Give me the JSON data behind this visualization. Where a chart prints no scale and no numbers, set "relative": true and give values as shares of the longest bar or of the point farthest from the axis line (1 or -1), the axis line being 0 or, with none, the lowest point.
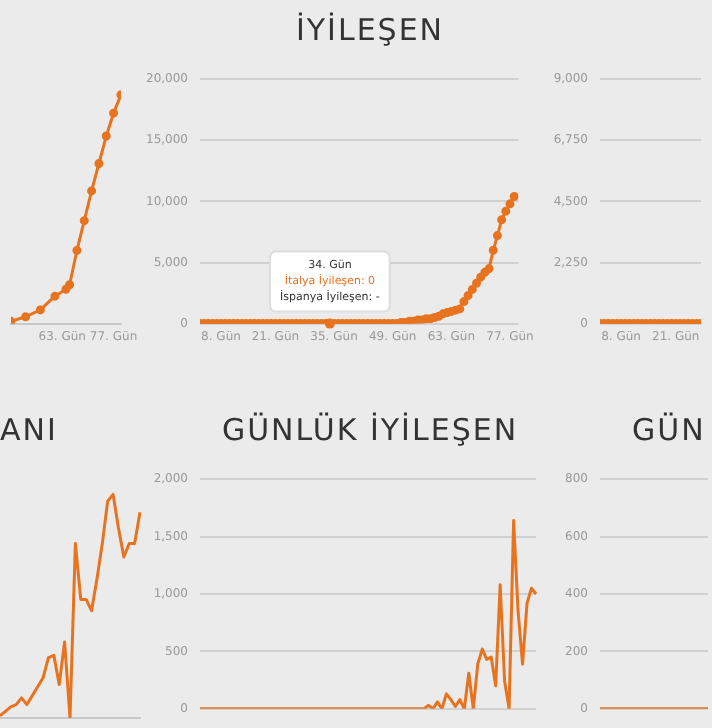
{
  "chart_data": [
    {
      "type": "line",
      "relative": true,
      "x": [
        49,
        53,
        57,
        61,
        64,
        65,
        67,
        69,
        71,
        73,
        75,
        77,
        79
      ],
      "xlim": [
        49,
        79
      ],
      "xticks": [
        {
          "value": 63,
          "label": "63. Gün"
        },
        {
          "value": 77,
          "label": "77. Gün"
        }
      ],
      "tick_labels": "x",
      "marker": "circle",
      "line_style": "solid",
      "series": [
        {
          "color": "#e8731f",
          "values": [
            0.01,
            0.03,
            0.06,
            0.12,
            0.15,
            0.17,
            0.32,
            0.45,
            0.58,
            0.7,
            0.82,
            0.92,
            1
          ]
        }
      ]
    },
    {
      "type": "line",
      "title": "İYİLEŞEN",
      "x": [
        3,
        4,
        5,
        6,
        7,
        8,
        9,
        10,
        11,
        12,
        13,
        14,
        15,
        16,
        17,
        18,
        19,
        20,
        21,
        22,
        23,
        24,
        25,
        26,
        27,
        28,
        29,
        30,
        31,
        32,
        33,
        34,
        35,
        36,
        37,
        38,
        39,
        40,
        41,
        42,
        43,
        44,
        45,
        46,
        47,
        48,
        49,
        50,
        51,
        52,
        53,
        54,
        55,
        56,
        57,
        58,
        59,
        60,
        61,
        62,
        63,
        64,
        65,
        66,
        67,
        68,
        69,
        70,
        71,
        72,
        73,
        74,
        75,
        76,
        77,
        78
      ],
      "xlim": [
        3,
        79
      ],
      "xticks": [
        {
          "value": 8,
          "label": "8. Gün"
        },
        {
          "value": 21,
          "label": "21. Gün"
        },
        {
          "value": 35,
          "label": "35. Gün"
        },
        {
          "value": 49,
          "label": "49. Gün"
        },
        {
          "value": 63,
          "label": "63. Gün"
        },
        {
          "value": 77,
          "label": "77. Gün"
        }
      ],
      "ylim": [
        0,
        20000
      ],
      "yticks": [
        0,
        {
          "value": 5000,
          "label": "5,000"
        },
        {
          "value": 10000,
          "label": "10,000"
        },
        {
          "value": 15000,
          "label": "15,000"
        },
        {
          "value": 20000,
          "label": "20,000"
        }
      ],
      "grid": "y",
      "marker": "circle",
      "line_style": "solid",
      "annotations": [
        {
          "text": "34. Gün\nİtalya İyileşen: 0\nİspanya İyileşen: -",
          "x": 34,
          "y": 0
        }
      ],
      "series": [
        {
          "color": "#e8731f",
          "values": [
            0,
            0,
            0,
            0,
            0,
            0,
            0,
            0,
            0,
            0,
            0,
            0,
            0,
            0,
            0,
            0,
            0,
            0,
            0,
            0,
            0,
            0,
            0,
            0,
            0,
            0,
            0,
            0,
            0,
            0,
            0,
            0,
            0,
            0,
            0,
            0,
            0,
            0,
            0,
            0,
            0,
            0,
            0,
            0,
            0,
            0,
            0,
            0,
            100,
            100,
            200,
            200,
            300,
            300,
            400,
            400,
            500,
            600,
            800,
            900,
            1000,
            1100,
            1200,
            1800,
            2300,
            2800,
            3300,
            3800,
            4200,
            4500,
            6000,
            7200,
            8500,
            9200,
            9800,
            10400
          ]
        }
      ]
    },
    {
      "type": "line",
      "x": [
        3,
        4,
        5,
        6,
        7,
        8,
        9,
        10,
        11,
        12,
        13,
        14,
        15,
        16,
        17,
        18,
        19,
        20,
        21,
        22,
        23,
        24,
        25,
        26,
        27
      ],
      "xlim": [
        3,
        27
      ],
      "xticks": [
        {
          "value": 8,
          "label": "8. Gün"
        },
        {
          "value": 21,
          "label": "21. Gün"
        }
      ],
      "ylim": [
        0,
        9000
      ],
      "yticks": [
        0,
        {
          "value": 2250,
          "label": "2,250"
        },
        {
          "value": 4500,
          "label": "4,500"
        },
        {
          "value": 6750,
          "label": "6,750"
        },
        {
          "value": 9000,
          "label": "9,000"
        }
      ],
      "grid": "y",
      "marker": "circle",
      "line_style": "solid",
      "series": [
        {
          "color": "#e8731f",
          "values": [
            0,
            0,
            0,
            0,
            0,
            0,
            0,
            0,
            0,
            0,
            0,
            0,
            0,
            0,
            0,
            0,
            0,
            0,
            0,
            0,
            0,
            0,
            0,
            0,
            0
          ]
        }
      ]
    },
    {
      "type": "line",
      "title": "ANI",
      "relative": true,
      "categories": [
        null,
        null,
        null,
        null,
        null,
        null,
        null,
        null,
        null,
        null,
        null,
        null,
        null,
        null,
        null,
        null,
        null,
        null,
        null,
        null,
        null,
        null,
        null,
        null,
        null,
        null,
        null
      ],
      "tick_labels": false,
      "line_style": "solid",
      "series": [
        {
          "color": "#e8731f",
          "values": [
            0.01,
            0.03,
            0.05,
            0.06,
            0.09,
            0.06,
            0.1,
            0.14,
            0.18,
            0.27,
            0.28,
            0.15,
            0.34,
            0,
            0.78,
            0.53,
            0.53,
            0.48,
            0.62,
            0.78,
            0.97,
            1,
            0.85,
            0.72,
            0.78,
            0.78,
            0.92
          ]
        }
      ]
    },
    {
      "type": "line",
      "title": "GÜNLÜK İYİLEŞEN",
      "categories": [
        null,
        null,
        null,
        null,
        null,
        null,
        null,
        null,
        null,
        null,
        null,
        null,
        null,
        null,
        null,
        null,
        null,
        null,
        null,
        null,
        null,
        null,
        null,
        null,
        null,
        null,
        null,
        null,
        null,
        null,
        null,
        null,
        null,
        null,
        null,
        null,
        null,
        null,
        null,
        null,
        null,
        null,
        null,
        null,
        null,
        null,
        null,
        null,
        null,
        null,
        null,
        null,
        null,
        null,
        null,
        null,
        null,
        null,
        null,
        null,
        null,
        null,
        null,
        null,
        null,
        null,
        null,
        null,
        null,
        null,
        null,
        null,
        null,
        null,
        null,
        null
      ],
      "ylim": [
        0,
        2000
      ],
      "yticks": [
        0,
        500,
        {
          "value": 1000,
          "label": "1,000"
        },
        {
          "value": 1500,
          "label": "1,500"
        },
        {
          "value": 2000,
          "label": "2,000"
        }
      ],
      "tick_labels": "y",
      "grid": "y",
      "line_style": "solid",
      "series": [
        {
          "color": "#e8731f",
          "values": [
            0,
            0,
            0,
            0,
            0,
            0,
            0,
            0,
            0,
            0,
            0,
            0,
            0,
            0,
            0,
            0,
            0,
            0,
            0,
            0,
            0,
            0,
            0,
            0,
            0,
            0,
            0,
            0,
            0,
            0,
            0,
            0,
            0,
            0,
            0,
            0,
            0,
            0,
            0,
            0,
            0,
            0,
            0,
            0,
            0,
            0,
            0,
            0,
            0,
            0,
            0,
            30,
            0,
            60,
            0,
            130,
            80,
            20,
            80,
            0,
            310,
            0,
            390,
            520,
            430,
            450,
            200,
            1080,
            240,
            0,
            1640,
            850,
            390,
            920,
            1050,
            1000
          ]
        }
      ]
    },
    {
      "type": "line",
      "title": "GÜN",
      "categories": [
        null,
        null,
        null,
        null,
        null,
        null,
        null,
        null,
        null,
        null,
        null,
        null
      ],
      "ylim": [
        0,
        800
      ],
      "yticks": [
        0,
        200,
        400,
        600,
        800
      ],
      "tick_labels": "y",
      "grid": "y",
      "line_style": "solid",
      "series": [
        {
          "color": "#e8731f",
          "values": [
            0,
            0,
            0,
            0,
            0,
            0,
            0,
            0,
            0,
            0,
            0,
            0
          ]
        }
      ]
    }
  ]
}
